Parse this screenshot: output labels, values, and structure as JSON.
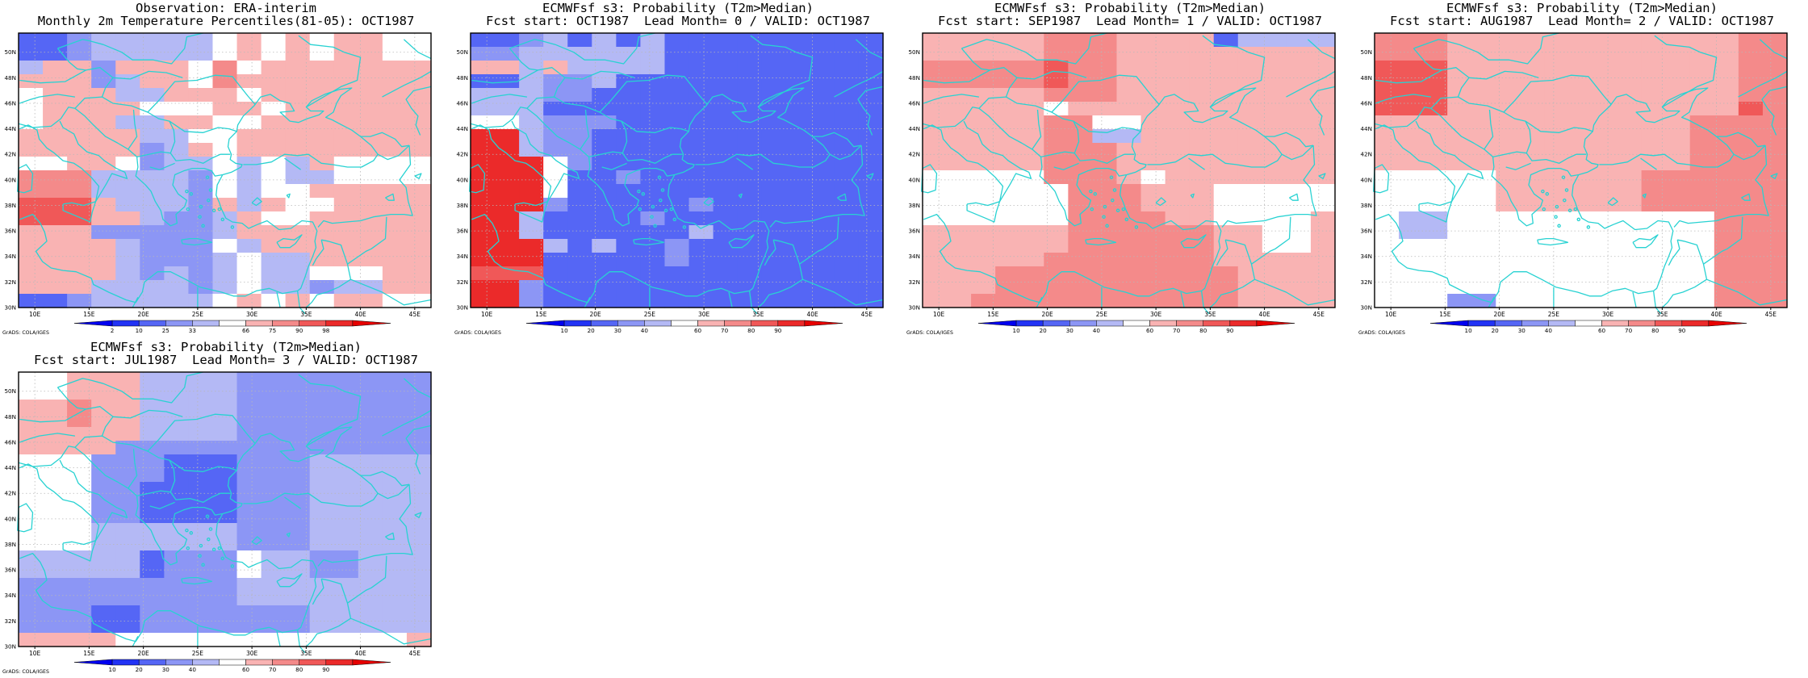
{
  "panels": [
    {
      "title_line1": "Observation: ERA-interim",
      "title_line2": "Monthly 2m Temperature Percentiles(81-05): OCT1987",
      "colorbar_labels": [
        "2",
        "10",
        "25",
        "33",
        "66",
        "75",
        "90",
        "98"
      ],
      "grid": [
        "22344444565656655",
        "22344444565656655",
        "46636665756666666",
        "66634665766666666",
        "56664466656666666",
        "56666555665666666",
        "56664466556666666",
        "66666445566666666",
        "66666346566666666",
        "55665344545465555",
        "77744443545445555",
        "77744443545566666",
        "88864443646556666",
        "88866433465566666",
        "66633333466666666",
        "66664333546666666",
        "66664333454466666",
        "66664343454455566",
        "66644443454434466",
        "22344444565656655"
      ]
    },
    {
      "title_line1": "ECMWFsf s3: Probability (T2m>Median)",
      "title_line2": "Fcst start: OCT1987  Lead Month= 0 / VALID: OCT1987",
      "colorbar_labels": [
        "10",
        "20",
        "30",
        "40",
        "60",
        "70",
        "80",
        "90"
      ],
      "grid": [
        "22342424222222222",
        "33444444222222222",
        "66464444222222222",
        "22433422222222222",
        "44433222222222222",
        "44422222222222222",
        "55433322222222222",
        "99433222222222222",
        "99433222222222222",
        "99953222222222222",
        "99952232222222222",
        "99952222222222222",
        "99932222232222222",
        "99422223222222222",
        "99422222242222222",
        "99942422322222222",
        "99922222322222222",
        "88822222222222222",
        "99322222222222222",
        "99322222222222222"
      ]
    },
    {
      "title_line1": "ECMWFsf s3: Probability (T2m>Median)",
      "title_line2": "Fcst start: SEP1987  Lead Month= 1 / VALID: OCT1987",
      "colorbar_labels": [
        "10",
        "20",
        "30",
        "40",
        "60",
        "70",
        "80",
        "90"
      ],
      "grid": [
        "66666777666624444",
        "66666777666666666",
        "77777877666666666",
        "77777877666666666",
        "66666777666666666",
        "66666566666666666",
        "66666775566666666",
        "66666774466666666",
        "66666777666666666",
        "66666777666666666",
        "55555777656666666",
        "55555577766655555",
        "55555577766655555",
        "55555577776655556",
        "66666677777766556",
        "66666677777766556",
        "66666777777766666",
        "66677777777776666",
        "66677777777776666",
        "66777777777776666"
      ]
    },
    {
      "title_line1": "ECMWFsf s3: Probability (T2m>Median)",
      "title_line2": "Fcst start: AUG1987  Lead Month= 2 / VALID: OCT1987",
      "colorbar_labels": [
        "10",
        "20",
        "30",
        "40",
        "60",
        "70",
        "80",
        "90"
      ],
      "grid": [
        "77766666666666677",
        "77766666666666677",
        "88866666666666677",
        "88866666666666677",
        "88866666666666677",
        "88866666666666687",
        "66666666666667777",
        "66666666666667777",
        "66666666666667777",
        "66666666666667777",
        "55555666666777777",
        "55555666666777777",
        "55555666666777777",
        "54455555555555777",
        "54455555555555777",
        "55555555555555777",
        "55555555555555777",
        "55555555555555777",
        "55555555555555777",
        "55533555555555777"
      ]
    },
    {
      "title_line1": "ECMWFsf s3: Probability (T2m>Median)",
      "title_line2": "Fcst start: JUL1987  Lead Month= 3 / VALID: OCT1987",
      "colorbar_labels": [
        "10",
        "20",
        "30",
        "40",
        "60",
        "70",
        "80",
        "90"
      ],
      "grid": [
        "55666444433333333",
        "55666444433333333",
        "66766444433333333",
        "66766444433333333",
        "66666444433333333",
        "66663333333333333",
        "55533322233344444",
        "55533322233344444",
        "55533222233344444",
        "55533222233344444",
        "55533222233344444",
        "55544444433344444",
        "55544444433344444",
        "44444233354433444",
        "44444233354433444",
        "33333333344444444",
        "33333333344444444",
        "33322333333344444",
        "33322333333344444",
        "66665555555555556"
      ]
    }
  ],
  "axes": {
    "lon_ticks": [
      "10E",
      "15E",
      "20E",
      "25E",
      "30E",
      "35E",
      "40E",
      "45E"
    ],
    "lat_ticks": [
      "30N",
      "32N",
      "34N",
      "36N",
      "38N",
      "40N",
      "42N",
      "44N",
      "46N",
      "48N",
      "50N"
    ]
  },
  "colors": {
    "scale": [
      "#0000f0",
      "#2233f5",
      "#5566f5",
      "#8c96f5",
      "#b4b9f5",
      "#ffffff",
      "#f9b3b3",
      "#f48a8a",
      "#f05858",
      "#eb2a2a",
      "#e60000"
    ],
    "coastline": "#28d2d2"
  },
  "footer": "GrADS: COLA/IGES"
}
